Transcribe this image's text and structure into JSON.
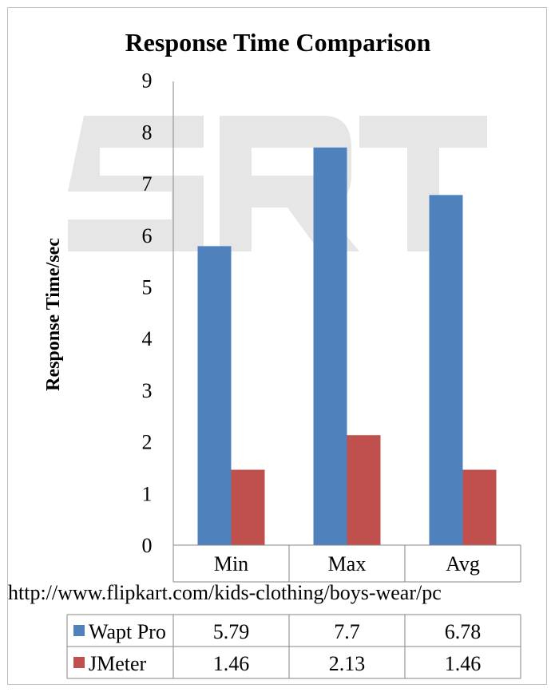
{
  "chart_data": {
    "type": "bar",
    "title": "Response Time Comparison",
    "xlabel": "http://www.flipkart.com/kids-clothing/boys-wear/pc",
    "ylabel": "Response Time/sec",
    "categories": [
      "Min",
      "Max",
      "Avg"
    ],
    "series": [
      {
        "name": "Wapt Pro",
        "values": [
          5.79,
          7.7,
          6.78
        ],
        "color": "#4f81bd"
      },
      {
        "name": "JMeter",
        "values": [
          1.46,
          2.13,
          1.46
        ],
        "color": "#c0504d"
      }
    ],
    "ylim": [
      0,
      9
    ],
    "yticks": [
      0,
      1,
      2,
      3,
      4,
      5,
      6,
      7,
      8,
      9
    ],
    "grid": false,
    "data_table": true,
    "table_values": [
      [
        "5.79",
        "7.7",
        "6.78"
      ],
      [
        "1.46",
        "2.13",
        "1.46"
      ]
    ],
    "watermark": "SRT"
  }
}
